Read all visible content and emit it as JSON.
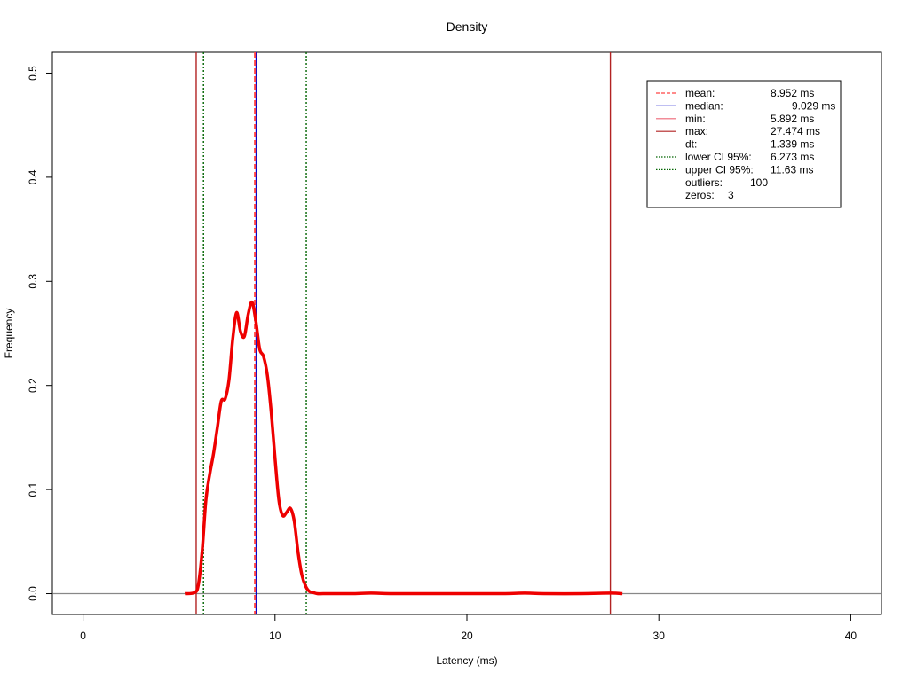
{
  "chart_data": {
    "type": "line",
    "title": "Density",
    "xlabel": "Latency (ms)",
    "ylabel": "Frequency",
    "xlim": [
      -1.6,
      41.6
    ],
    "ylim": [
      -0.02,
      0.52
    ],
    "xticks": [
      0,
      10,
      20,
      30,
      40
    ],
    "xtick_labels": [
      "0",
      "10",
      "20",
      "30",
      "40"
    ],
    "yticks": [
      0.0,
      0.1,
      0.2,
      0.3,
      0.4,
      0.5
    ],
    "ytick_labels": [
      "0.0",
      "0.1",
      "0.2",
      "0.3",
      "0.4",
      "0.5"
    ],
    "grid": false,
    "legend_position": "top-right",
    "series": [
      {
        "name": "density",
        "color": "#ee0000",
        "x": [
          5.3,
          5.8,
          6.0,
          6.2,
          6.4,
          6.6,
          6.8,
          7.0,
          7.2,
          7.4,
          7.6,
          7.8,
          8.0,
          8.2,
          8.4,
          8.6,
          8.8,
          9.0,
          9.2,
          9.4,
          9.6,
          9.8,
          10.0,
          10.2,
          10.4,
          10.6,
          10.8,
          11.0,
          11.2,
          11.4,
          11.6,
          11.8,
          12.0,
          12.2,
          12.5,
          13.0,
          14.0,
          15.0,
          16.0,
          18.0,
          20.0,
          22.0,
          23.0,
          24.0,
          26.0,
          27.5,
          28.1
        ],
        "y": [
          0.0,
          0.001,
          0.008,
          0.04,
          0.09,
          0.115,
          0.135,
          0.16,
          0.185,
          0.187,
          0.205,
          0.245,
          0.27,
          0.252,
          0.247,
          0.268,
          0.28,
          0.262,
          0.235,
          0.228,
          0.21,
          0.175,
          0.13,
          0.09,
          0.075,
          0.078,
          0.082,
          0.07,
          0.04,
          0.018,
          0.007,
          0.002,
          0.001,
          0.0,
          0.0,
          0.0,
          0.0,
          0.0005,
          0.0,
          0.0,
          0.0,
          0.0,
          0.0005,
          0.0,
          0.0,
          0.0005,
          0.0
        ]
      }
    ],
    "vlines": [
      {
        "name": "min",
        "x": 5.892,
        "color": "#b22222",
        "dash": "solid"
      },
      {
        "name": "lower CI 95%",
        "x": 6.273,
        "color": "#006400",
        "dash": "dotted"
      },
      {
        "name": "median",
        "x": 9.029,
        "color": "#0000cd",
        "dash": "solid"
      },
      {
        "name": "mean",
        "x": 8.952,
        "color": "#ff4444",
        "dash": "dashed"
      },
      {
        "name": "upper CI 95%",
        "x": 11.63,
        "color": "#006400",
        "dash": "dotted"
      },
      {
        "name": "max",
        "x": 27.474,
        "color": "#b22222",
        "dash": "solid"
      }
    ],
    "hlines": [
      {
        "y": 0.0,
        "color": "#888888"
      }
    ],
    "legend": [
      {
        "label": "mean:",
        "value": "8.952 ms",
        "color": "#ff4444",
        "dash": "dashed"
      },
      {
        "label": "median:",
        "value": "9.029 ms",
        "color": "#0000cd",
        "dash": "solid"
      },
      {
        "label": "min:",
        "value": "5.892 ms",
        "color": "#ee6677",
        "dash": "solid"
      },
      {
        "label": "max:",
        "value": "27.474 ms",
        "color": "#b22222",
        "dash": "solid"
      },
      {
        "label": "dt:",
        "value": "1.339 ms",
        "color": "",
        "dash": "none"
      },
      {
        "label": "lower CI 95%:",
        "value": "6.273 ms",
        "color": "#006400",
        "dash": "dotted"
      },
      {
        "label": "upper CI 95%:",
        "value": "11.63 ms",
        "color": "#006400",
        "dash": "dotted"
      },
      {
        "label": "outliers:",
        "value": "100",
        "color": "",
        "dash": "none"
      },
      {
        "label": "zeros:",
        "value": "3",
        "color": "",
        "dash": "none"
      }
    ]
  }
}
